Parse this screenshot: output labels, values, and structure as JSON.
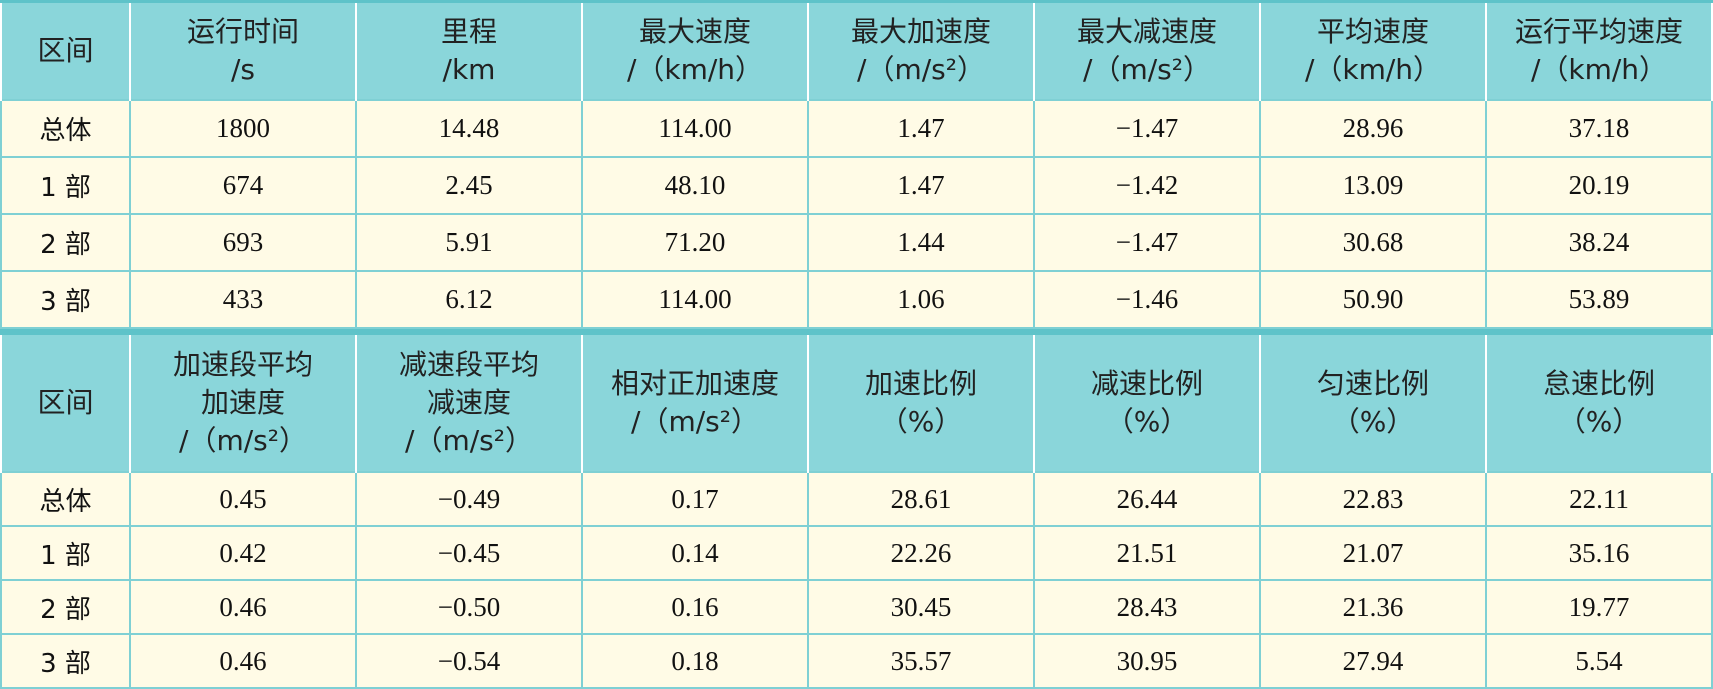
{
  "tables": [
    {
      "header": [
        "区间",
        "运行时间\n/s",
        "里程\n/km",
        "最大速度\n/（km/h）",
        "最大加速度\n/（m/s²）",
        "最大减速度\n/（m/s²）",
        "平均速度\n/（km/h）",
        "运行平均速度\n/（km/h）"
      ],
      "rows": [
        [
          "总体",
          "1800",
          "14.48",
          "114.00",
          "1.47",
          "−1.47",
          "28.96",
          "37.18"
        ],
        [
          "1 部",
          "674",
          "2.45",
          "48.10",
          "1.47",
          "−1.42",
          "13.09",
          "20.19"
        ],
        [
          "2 部",
          "693",
          "5.91",
          "71.20",
          "1.44",
          "−1.47",
          "30.68",
          "38.24"
        ],
        [
          "3 部",
          "433",
          "6.12",
          "114.00",
          "1.06",
          "−1.46",
          "50.90",
          "53.89"
        ]
      ]
    },
    {
      "header": [
        "区间",
        "加速段平均\n加速度\n/（m/s²）",
        "减速段平均\n减速度\n/（m/s²）",
        "相对正加速度\n/（m/s²）",
        "加速比例\n（%）",
        "减速比例\n（%）",
        "匀速比例\n（%）",
        "怠速比例\n（%）"
      ],
      "rows": [
        [
          "总体",
          "0.45",
          "−0.49",
          "0.17",
          "28.61",
          "26.44",
          "22.83",
          "22.11"
        ],
        [
          "1 部",
          "0.42",
          "−0.45",
          "0.14",
          "22.26",
          "21.51",
          "21.07",
          "35.16"
        ],
        [
          "2 部",
          "0.46",
          "−0.50",
          "0.16",
          "30.45",
          "28.43",
          "21.36",
          "19.77"
        ],
        [
          "3 部",
          "0.46",
          "−0.54",
          "0.18",
          "35.57",
          "30.95",
          "27.94",
          "5.54"
        ]
      ]
    }
  ]
}
